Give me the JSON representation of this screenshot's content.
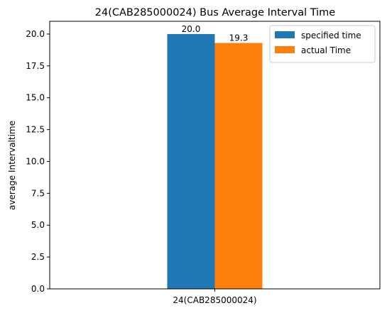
{
  "chart_data": {
    "type": "bar",
    "title": "24(CAB285000024) Bus Average Interval Time",
    "xlabel": "",
    "ylabel": "average Intervaltime",
    "categories": [
      "24(CAB285000024)"
    ],
    "series": [
      {
        "name": "specified time",
        "values": [
          20.0
        ],
        "color": "#1f77b4",
        "label": "20.0"
      },
      {
        "name": "actual Time",
        "values": [
          19.3
        ],
        "color": "#ff7f0e",
        "label": "19.3"
      }
    ],
    "ylim": [
      0,
      21
    ],
    "yticks": [
      "0.0",
      "2.5",
      "5.0",
      "7.5",
      "10.0",
      "12.5",
      "15.0",
      "17.5",
      "20.0"
    ],
    "legend_position": "top-right",
    "grid": false
  }
}
